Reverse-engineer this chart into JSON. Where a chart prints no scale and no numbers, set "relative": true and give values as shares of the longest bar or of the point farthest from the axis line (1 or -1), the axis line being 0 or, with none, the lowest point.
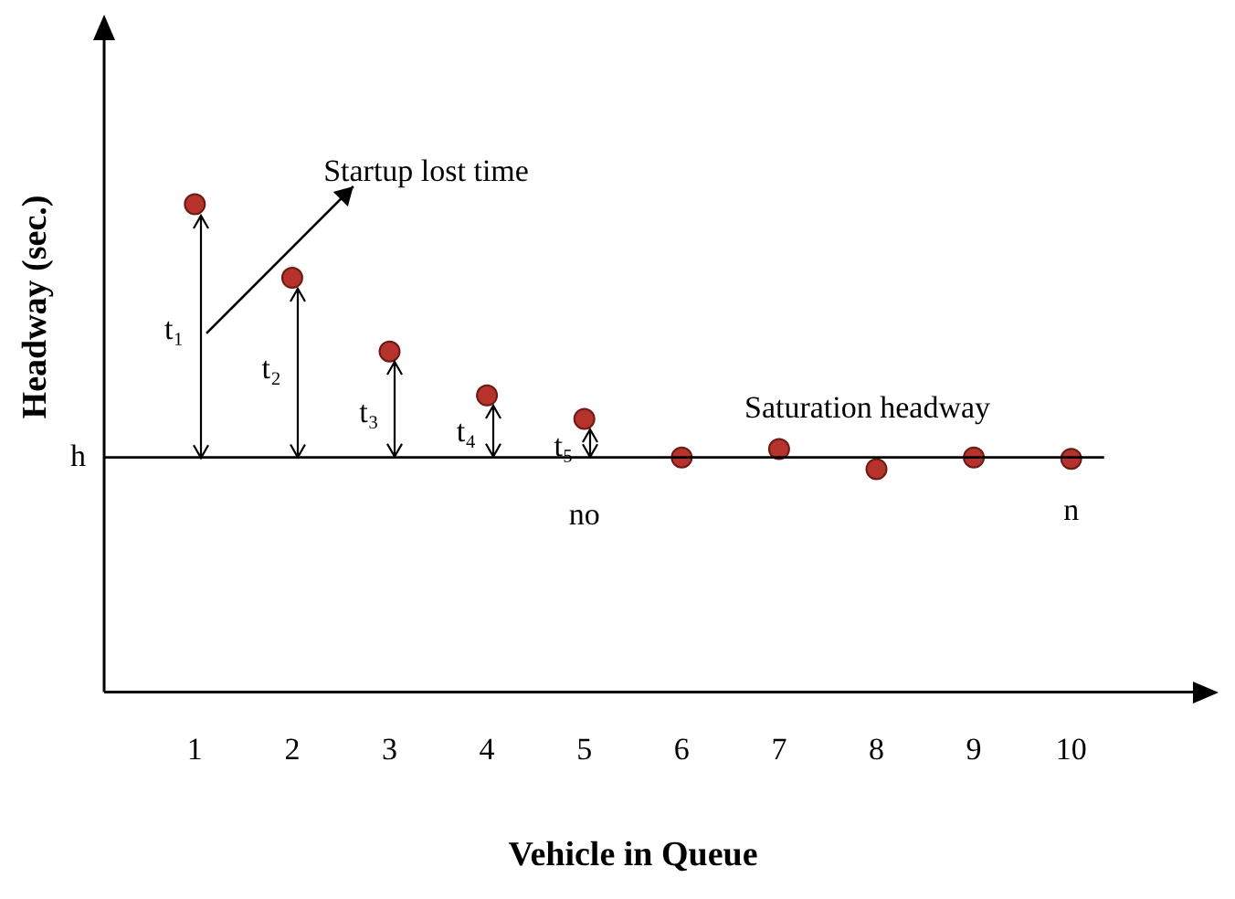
{
  "chart_data": {
    "type": "scatter",
    "relative": true,
    "xlabel": "Vehicle in Queue",
    "ylabel": "Headway (sec.)",
    "categories": [
      "1",
      "2",
      "3",
      "4",
      "5",
      "6",
      "7",
      "8",
      "9",
      "10"
    ],
    "values": [
      1,
      0.849,
      0.698,
      0.608,
      0.56,
      0.481,
      0.498,
      0.457,
      0.481,
      0.478
    ],
    "color": "#b5332b",
    "marker": "circle",
    "grid": false,
    "legend": false,
    "ref_lines": [
      {
        "axis": "y",
        "value": 0.481,
        "label": "h",
        "color": "#000000"
      }
    ],
    "annotations": [
      "Startup lost time",
      "t₁",
      "t₂",
      "t₃",
      "t₄",
      "t₅",
      "Saturation headway",
      "no",
      "n"
    ]
  }
}
